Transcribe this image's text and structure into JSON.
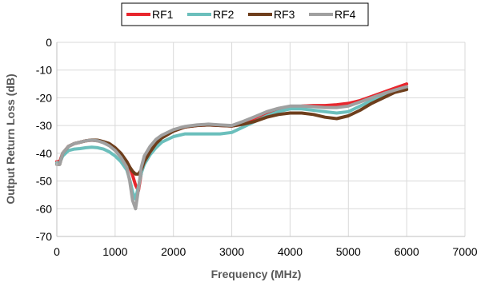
{
  "chart_data": {
    "type": "line",
    "title": "",
    "xlabel": "Frequency (MHz)",
    "ylabel": "Output Return Loss (dB)",
    "xlim": [
      0,
      7000
    ],
    "ylim": [
      -70,
      0
    ],
    "x_ticks": [
      0,
      1000,
      2000,
      3000,
      4000,
      5000,
      6000,
      7000
    ],
    "y_ticks": [
      0,
      -10,
      -20,
      -30,
      -40,
      -50,
      -60,
      -70
    ],
    "x_tick_labels": [
      "0",
      "1000",
      "2000",
      "3000",
      "4000",
      "5000",
      "6000",
      "7000"
    ],
    "y_tick_labels": [
      "0",
      "-10",
      "-20",
      "-30",
      "-40",
      "-50",
      "-60",
      "-70"
    ],
    "grid": true,
    "legend_position": "top-center",
    "series": [
      {
        "name": "RF1",
        "color": "#e8262d",
        "x": [
          0,
          50,
          100,
          200,
          300,
          400,
          500,
          600,
          700,
          800,
          900,
          1000,
          1100,
          1200,
          1250,
          1300,
          1350,
          1400,
          1450,
          1500,
          1600,
          1700,
          1800,
          2000,
          2200,
          2400,
          2600,
          2800,
          3000,
          3200,
          3400,
          3600,
          3800,
          4000,
          4200,
          4400,
          4600,
          4800,
          5000,
          5200,
          5400,
          5600,
          5800,
          6000
        ],
        "y": [
          -43,
          -43,
          -40,
          -37.5,
          -36.5,
          -36,
          -35.5,
          -35.3,
          -35.5,
          -36,
          -37,
          -38.5,
          -40.5,
          -43,
          -45,
          -48,
          -51.5,
          -53.5,
          -47,
          -43,
          -39,
          -36,
          -34,
          -32,
          -30.5,
          -30,
          -29.8,
          -30,
          -30.2,
          -29.5,
          -28,
          -26,
          -24.5,
          -23.5,
          -23,
          -22.8,
          -22.8,
          -22.5,
          -22,
          -21,
          -19.5,
          -18,
          -16.5,
          -15
        ]
      },
      {
        "name": "RF2",
        "color": "#6bbfbc",
        "x": [
          0,
          50,
          100,
          200,
          300,
          400,
          500,
          600,
          700,
          800,
          900,
          1000,
          1100,
          1200,
          1250,
          1300,
          1350,
          1400,
          1450,
          1500,
          1600,
          1700,
          1800,
          2000,
          2200,
          2400,
          2600,
          2800,
          3000,
          3200,
          3400,
          3600,
          3800,
          4000,
          4200,
          4400,
          4600,
          4800,
          5000,
          5200,
          5400,
          5600,
          5800,
          6000
        ],
        "y": [
          -43.5,
          -43.5,
          -41,
          -39,
          -38.5,
          -38.3,
          -38,
          -37.8,
          -38,
          -38.5,
          -39.5,
          -41,
          -43,
          -46,
          -49.5,
          -54,
          -56.5,
          -52,
          -47,
          -44,
          -40.5,
          -38,
          -36,
          -34,
          -33,
          -33,
          -33,
          -33,
          -32.5,
          -30.5,
          -28.5,
          -26.5,
          -25,
          -24,
          -24,
          -24.5,
          -25,
          -25.5,
          -25,
          -23,
          -21,
          -19,
          -17.5,
          -16.5
        ]
      },
      {
        "name": "RF3",
        "color": "#6e3e1c",
        "x": [
          0,
          50,
          100,
          200,
          300,
          400,
          500,
          600,
          700,
          800,
          900,
          1000,
          1100,
          1200,
          1250,
          1300,
          1350,
          1400,
          1450,
          1500,
          1600,
          1700,
          1800,
          2000,
          2200,
          2400,
          2600,
          2800,
          3000,
          3200,
          3400,
          3600,
          3800,
          4000,
          4200,
          4400,
          4600,
          4800,
          5000,
          5200,
          5400,
          5600,
          5800,
          6000
        ],
        "y": [
          -44,
          -44,
          -40,
          -37.5,
          -36.5,
          -36,
          -35.5,
          -35.2,
          -35.3,
          -35.8,
          -36.5,
          -38,
          -40,
          -43,
          -45,
          -46.5,
          -47.5,
          -47.5,
          -46,
          -43,
          -39.5,
          -36.5,
          -34.5,
          -32,
          -30.5,
          -30,
          -29.8,
          -30,
          -30.2,
          -29.5,
          -28.5,
          -27,
          -26,
          -25.5,
          -25.5,
          -26,
          -27,
          -27.5,
          -26.5,
          -24.5,
          -22,
          -20,
          -18,
          -17
        ]
      },
      {
        "name": "RF4",
        "color": "#a0a0a0",
        "x": [
          0,
          50,
          100,
          200,
          300,
          400,
          500,
          600,
          700,
          800,
          900,
          1000,
          1100,
          1200,
          1250,
          1300,
          1350,
          1400,
          1450,
          1500,
          1600,
          1700,
          1800,
          2000,
          2200,
          2400,
          2600,
          2800,
          3000,
          3200,
          3400,
          3600,
          3800,
          4000,
          4200,
          4400,
          4600,
          4800,
          5000,
          5200,
          5400,
          5600,
          5800,
          6000
        ],
        "y": [
          -44,
          -44,
          -40,
          -37.5,
          -36.5,
          -36,
          -35.5,
          -35.3,
          -35.5,
          -36.2,
          -37.3,
          -39,
          -41.5,
          -45,
          -50,
          -57,
          -60,
          -53,
          -45,
          -41,
          -37.5,
          -35,
          -33.5,
          -31.5,
          -30.3,
          -29.8,
          -29.5,
          -29.8,
          -30,
          -28.5,
          -26.8,
          -25,
          -23.8,
          -23,
          -23,
          -23.2,
          -23.5,
          -23.5,
          -23,
          -21.5,
          -20,
          -18.5,
          -17.2,
          -16
        ]
      }
    ]
  }
}
